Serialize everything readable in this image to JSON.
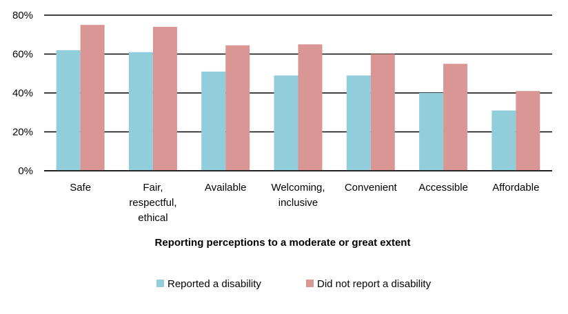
{
  "chart_data": {
    "type": "bar",
    "title": "",
    "xlabel": "Reporting perceptions to a moderate or great extent",
    "ylabel": "",
    "ylim": [
      0,
      80
    ],
    "yticks": [
      0,
      20,
      40,
      60,
      80
    ],
    "ytick_labels": [
      "0%",
      "20%",
      "40%",
      "60%",
      "80%"
    ],
    "grid": true,
    "legend_position": "bottom",
    "categories": [
      [
        "Safe"
      ],
      [
        "Fair,",
        "respectful,",
        "ethical"
      ],
      [
        "Available"
      ],
      [
        "Welcoming,",
        "inclusive"
      ],
      [
        "Convenient"
      ],
      [
        "Accessible"
      ],
      [
        "Affordable"
      ]
    ],
    "series": [
      {
        "name": "Reported a disability",
        "color": "#92cddc",
        "values": [
          62,
          61,
          51,
          49,
          49,
          40,
          31
        ]
      },
      {
        "name": "Did not report a disability",
        "color": "#da9694",
        "values": [
          75,
          74,
          64.5,
          65,
          60,
          55,
          41
        ]
      }
    ]
  }
}
